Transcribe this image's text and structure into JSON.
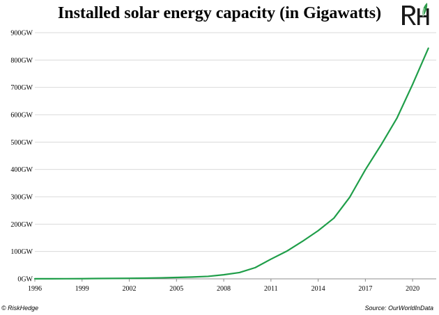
{
  "title": "Installed solar energy capacity (in Gigawatts)",
  "logo": {
    "text": "RH",
    "colors": {
      "letters": "#1a1a1a",
      "leaf": "#2e9a4a"
    }
  },
  "footer": {
    "copyright": "© RiskHedge",
    "source": "Source: OurWorldInData"
  },
  "chart_data": {
    "type": "line",
    "title": "Installed solar energy capacity (in Gigawatts)",
    "xlabel": "",
    "ylabel": "",
    "xlim": [
      1996,
      2021.5
    ],
    "ylim": [
      0,
      900
    ],
    "y_unit_suffix": "GW",
    "x_ticks": [
      1996,
      1999,
      2002,
      2005,
      2008,
      2011,
      2014,
      2017,
      2020
    ],
    "y_ticks": [
      0,
      100,
      200,
      300,
      400,
      500,
      600,
      700,
      800,
      900
    ],
    "grid": {
      "horizontal": true,
      "vertical": false
    },
    "colors": {
      "line": "#1f9e49",
      "grid": "#d9d9d9",
      "axis": "#8c8c8c"
    },
    "series": [
      {
        "x": [
          1996,
          1997,
          1998,
          1999,
          2000,
          2001,
          2002,
          2003,
          2004,
          2005,
          2006,
          2007,
          2008,
          2009,
          2010,
          2011,
          2012,
          2013,
          2014,
          2015,
          2016,
          2017,
          2018,
          2019,
          2020,
          2021
        ],
        "values": [
          0.3,
          0.4,
          0.5,
          0.7,
          1.2,
          1.5,
          2.0,
          2.6,
          3.7,
          5.1,
          6.7,
          9.0,
          15,
          23,
          41,
          72,
          101,
          137,
          176,
          222,
          298,
          399,
          490,
          587,
          711,
          843
        ]
      }
    ]
  }
}
